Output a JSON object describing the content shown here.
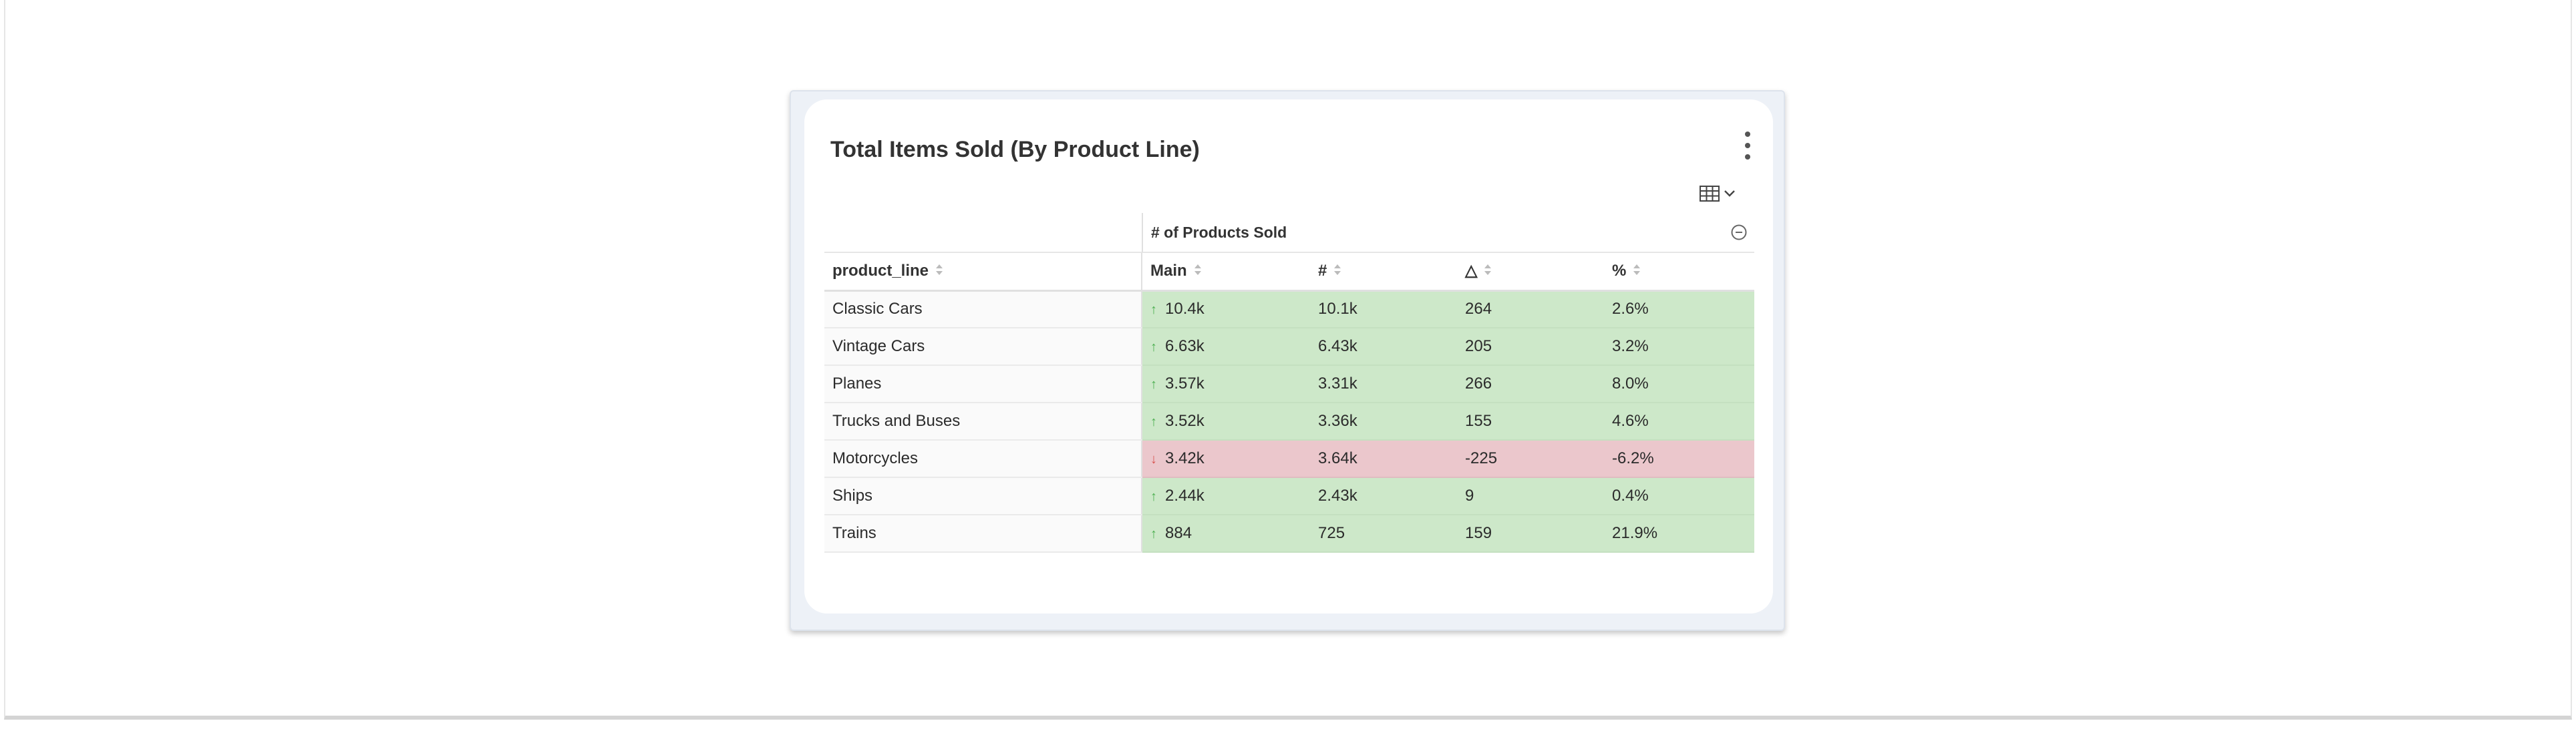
{
  "card": {
    "title": "Total Items Sold (By Product Line)"
  },
  "icons": {
    "menu": "kebab-menu-icon",
    "viz": "table-icon",
    "collapse": "minus-circle-icon",
    "sort": "sort-icon"
  },
  "table": {
    "group_header": "# of Products Sold",
    "columns": {
      "dimension": "product_line",
      "main": "Main",
      "count": "#",
      "delta": "△",
      "percent": "%"
    },
    "rows": [
      {
        "product_line": "Classic Cars",
        "direction": "up",
        "main": "10.4k",
        "count": "10.1k",
        "delta": "264",
        "percent": "2.6%"
      },
      {
        "product_line": "Vintage Cars",
        "direction": "up",
        "main": "6.63k",
        "count": "6.43k",
        "delta": "205",
        "percent": "3.2%"
      },
      {
        "product_line": "Planes",
        "direction": "up",
        "main": "3.57k",
        "count": "3.31k",
        "delta": "266",
        "percent": "8.0%"
      },
      {
        "product_line": "Trucks and Buses",
        "direction": "up",
        "main": "3.52k",
        "count": "3.36k",
        "delta": "155",
        "percent": "4.6%"
      },
      {
        "product_line": "Motorcycles",
        "direction": "down",
        "main": "3.42k",
        "count": "3.64k",
        "delta": "-225",
        "percent": "-6.2%"
      },
      {
        "product_line": "Ships",
        "direction": "up",
        "main": "2.44k",
        "count": "2.43k",
        "delta": "9",
        "percent": "0.4%"
      },
      {
        "product_line": "Trains",
        "direction": "up",
        "main": "884",
        "count": "725",
        "delta": "159",
        "percent": "21.9%"
      }
    ]
  },
  "colors": {
    "positive_bg": "#cde8c9",
    "negative_bg": "#ebc7cc",
    "up_arrow": "#4caf50",
    "down_arrow": "#d9534f"
  }
}
